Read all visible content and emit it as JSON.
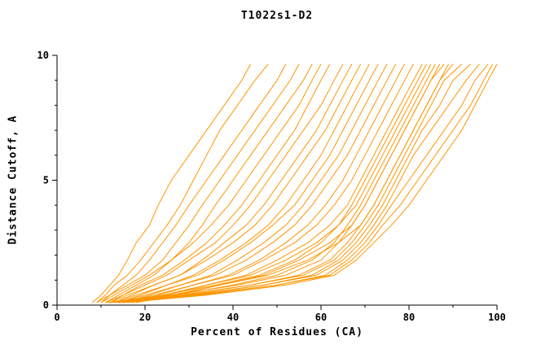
{
  "chart_data": {
    "type": "line",
    "title": "T1022s1-D2",
    "xlabel": "Percent of Residues (CA)",
    "ylabel": "Distance Cutoff, A",
    "xlim": [
      0,
      100
    ],
    "ylim": [
      0,
      10
    ],
    "x_ticks_major": [
      0,
      20,
      40,
      60,
      80,
      100
    ],
    "x_ticks_minor": [
      10,
      30,
      50,
      70,
      90
    ],
    "y_ticks_major": [
      0,
      5,
      10
    ],
    "y_ticks_minor": [
      1,
      2,
      3,
      4,
      6,
      7,
      8,
      9
    ],
    "grid": false,
    "legend": false,
    "line_color": "#ff9500",
    "axis_color": "#000000",
    "y_common": [
      0.1,
      0.4,
      0.8,
      1.2,
      1.8,
      2.5,
      3.2,
      4,
      5,
      6,
      7,
      8,
      9,
      9.65
    ],
    "series": [
      {
        "x": [
          8,
          10,
          12,
          14,
          16,
          18,
          21,
          23,
          26,
          30,
          34,
          38,
          42,
          44
        ]
      },
      {
        "x": [
          9,
          11,
          13,
          16,
          19,
          22,
          25,
          28,
          31,
          34,
          37,
          41,
          45,
          48
        ]
      },
      {
        "x": [
          10,
          12,
          15,
          18,
          21,
          24,
          27,
          30,
          34,
          38,
          42,
          46,
          50,
          52
        ]
      },
      {
        "x": [
          9,
          12,
          16,
          20,
          24,
          27,
          30,
          33,
          37,
          41,
          45,
          49,
          53,
          55
        ]
      },
      {
        "x": [
          11,
          14,
          18,
          22,
          26,
          30,
          33,
          36,
          40,
          44,
          48,
          52,
          56,
          58
        ]
      },
      {
        "x": [
          10,
          13,
          17,
          21,
          26,
          31,
          35,
          39,
          43,
          47,
          51,
          55,
          58,
          60
        ]
      },
      {
        "x": [
          12,
          15,
          19,
          24,
          29,
          34,
          38,
          42,
          46,
          50,
          54,
          57,
          60,
          62
        ]
      },
      {
        "x": [
          11,
          15,
          20,
          25,
          30,
          36,
          40,
          44,
          48,
          52,
          56,
          60,
          63,
          65
        ]
      },
      {
        "x": [
          13,
          17,
          22,
          28,
          33,
          38,
          43,
          47,
          51,
          55,
          59,
          62,
          65,
          67
        ]
      },
      {
        "x": [
          12,
          16,
          22,
          28,
          34,
          40,
          45,
          49,
          53,
          57,
          61,
          64,
          67,
          69
        ]
      },
      {
        "x": [
          14,
          19,
          25,
          31,
          37,
          43,
          48,
          52,
          56,
          60,
          63,
          66,
          69,
          71
        ]
      },
      {
        "x": [
          13,
          18,
          25,
          32,
          38,
          44,
          49,
          54,
          58,
          62,
          65,
          68,
          71,
          73
        ]
      },
      {
        "x": [
          15,
          21,
          28,
          35,
          41,
          47,
          52,
          56,
          60,
          64,
          67,
          70,
          73,
          75
        ]
      },
      {
        "x": [
          14,
          20,
          28,
          36,
          43,
          49,
          54,
          58,
          62,
          66,
          69,
          72,
          75,
          77
        ]
      },
      {
        "x": [
          16,
          23,
          31,
          39,
          46,
          52,
          57,
          61,
          65,
          68,
          71,
          74,
          77,
          79
        ]
      },
      {
        "x": [
          15,
          22,
          31,
          40,
          47,
          54,
          59,
          63,
          67,
          70,
          73,
          76,
          79,
          81
        ]
      },
      {
        "x": [
          17,
          25,
          34,
          43,
          50,
          57,
          62,
          66,
          69,
          72,
          75,
          78,
          81,
          83
        ]
      },
      {
        "x": [
          16,
          24,
          34,
          44,
          52,
          59,
          64,
          68,
          71,
          74,
          77,
          80,
          83,
          85
        ]
      },
      {
        "x": [
          18,
          27,
          37,
          47,
          55,
          62,
          67,
          70,
          73,
          76,
          79,
          82,
          85,
          87
        ]
      },
      {
        "x": [
          17,
          26,
          37,
          48,
          57,
          64,
          69,
          72,
          75,
          78,
          81,
          84,
          87,
          89
        ]
      },
      {
        "x": [
          12,
          24,
          36,
          46,
          54,
          60,
          64,
          67,
          70,
          73,
          76,
          79,
          82,
          84
        ]
      },
      {
        "x": [
          13,
          27,
          40,
          50,
          58,
          63,
          66,
          69,
          72,
          75,
          78,
          81,
          84,
          86
        ]
      },
      {
        "x": [
          11,
          26,
          41,
          52,
          60,
          64,
          67,
          70,
          73,
          76,
          79,
          82,
          85,
          88
        ]
      },
      {
        "x": [
          14,
          29,
          44,
          55,
          62,
          66,
          69,
          72,
          75,
          78,
          81,
          84,
          87,
          90
        ]
      },
      {
        "x": [
          12,
          28,
          44,
          56,
          63,
          67,
          70,
          73,
          76,
          79,
          82,
          85,
          88,
          92
        ]
      },
      {
        "x": [
          15,
          31,
          47,
          58,
          64,
          68,
          71,
          74,
          77,
          80,
          83,
          87,
          90,
          94
        ]
      },
      {
        "x": [
          13,
          30,
          47,
          59,
          65,
          69,
          72,
          75,
          78,
          81,
          85,
          89,
          93,
          96
        ]
      },
      {
        "x": [
          16,
          33,
          50,
          61,
          66,
          70,
          73,
          76,
          80,
          84,
          88,
          92,
          95,
          98
        ]
      },
      {
        "x": [
          14,
          32,
          50,
          62,
          67,
          71,
          74,
          78,
          82,
          86,
          90,
          94,
          97,
          99
        ]
      },
      {
        "x": [
          15,
          34,
          52,
          63,
          68,
          72,
          76,
          80,
          84,
          88,
          92,
          95,
          98,
          100
        ]
      }
    ]
  }
}
